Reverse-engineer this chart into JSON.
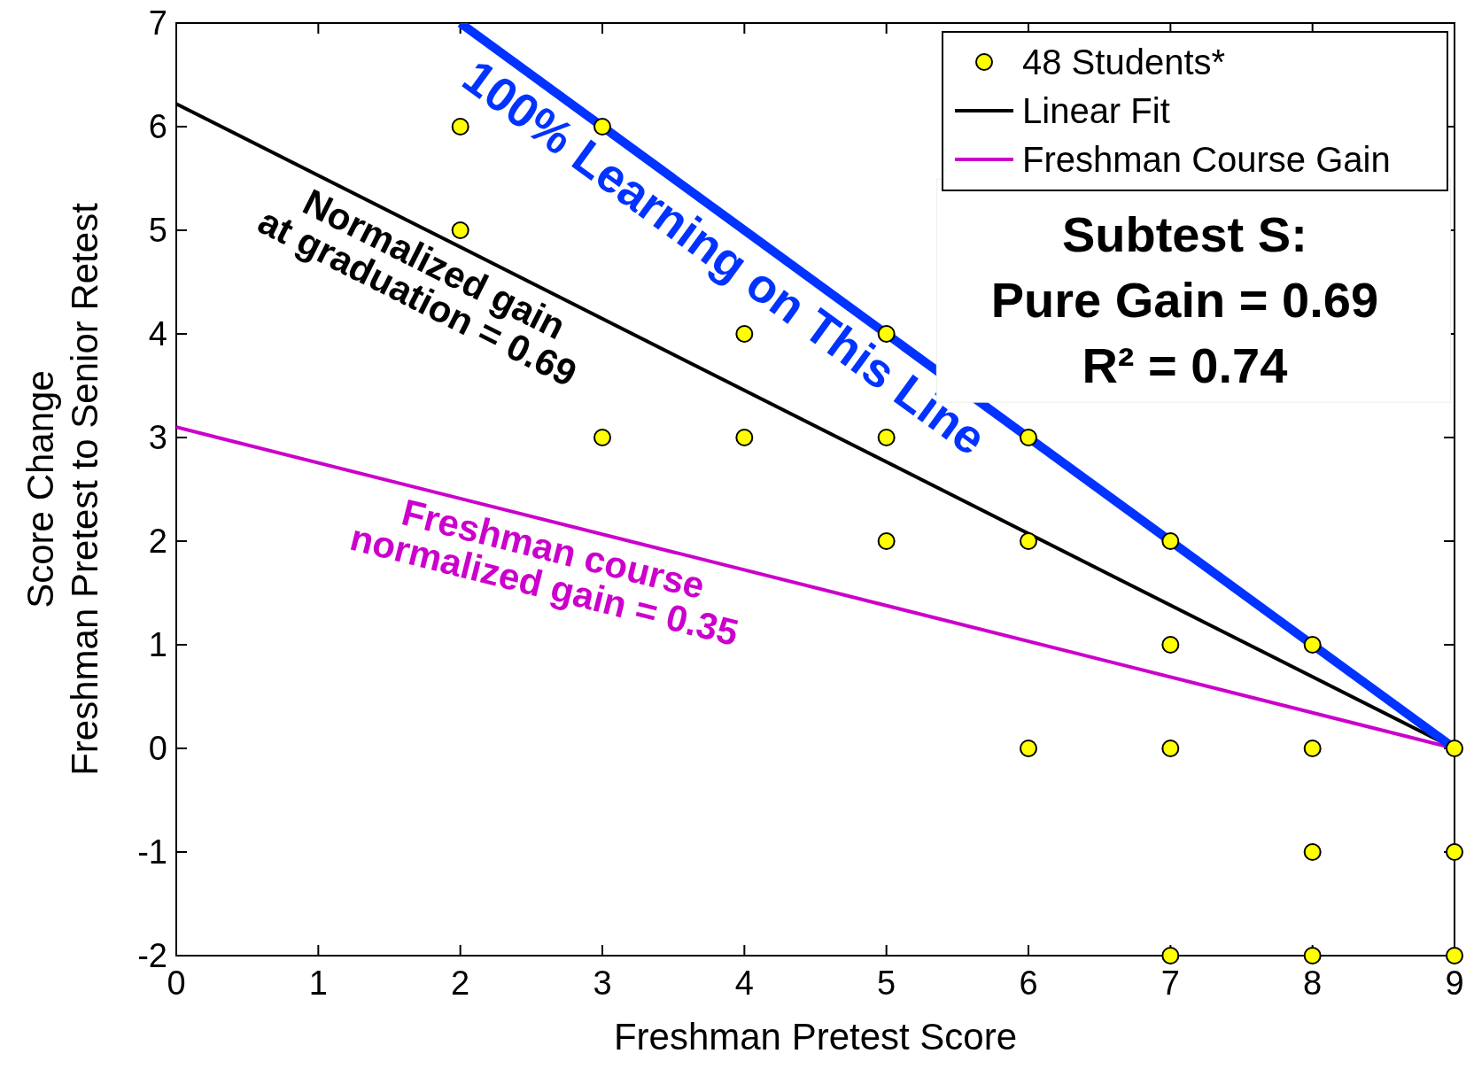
{
  "chart_data": {
    "type": "scatter",
    "xlabel": "Freshman Pretest Score",
    "ylabel": "Score Change\nFreshman Pretest to Senior Retest",
    "xlim": [
      0,
      9
    ],
    "ylim": [
      -2,
      7
    ],
    "xticks": [
      0,
      1,
      2,
      3,
      4,
      5,
      6,
      7,
      8,
      9
    ],
    "yticks": [
      -2,
      -1,
      0,
      1,
      2,
      3,
      4,
      5,
      6,
      7
    ],
    "legend": "top right",
    "grid": false,
    "series": [
      {
        "name": "48 Students*",
        "marker": "circle",
        "color": "#ffff00",
        "x": [
          2,
          2,
          3,
          3,
          4,
          4,
          5,
          5,
          5,
          6,
          6,
          6,
          7,
          7,
          7,
          7,
          8,
          8,
          8,
          8,
          9,
          9,
          9
        ],
        "values": [
          6,
          5,
          6,
          3,
          4,
          3,
          4,
          3,
          2,
          3,
          2,
          0,
          2,
          1,
          0,
          -2,
          1,
          0,
          -1,
          -2,
          0,
          -1,
          -2
        ]
      },
      {
        "name": "Linear Fit",
        "type": "line",
        "color": "#000000",
        "x": [
          0,
          9
        ],
        "values": [
          6.22,
          0
        ]
      },
      {
        "name": "Freshman Course Gain",
        "type": "line",
        "color": "#cc00cc",
        "x": [
          0,
          9
        ],
        "values": [
          3.1,
          0
        ]
      },
      {
        "type": "line",
        "color": "#0033ff",
        "x": [
          2,
          9
        ],
        "values": [
          7,
          0
        ]
      }
    ],
    "annotations": [
      {
        "text": "100% Learning on This Line",
        "x": 4,
        "y": 5
      },
      {
        "text": "Normalized gain\nat graduation = 0.69",
        "x": 1.9,
        "y": 4.9
      },
      {
        "text": "Freshman course\nnormalized gain = 0.35",
        "x": 2.7,
        "y": 2.17
      },
      "Subtest S:\nPure Gain = 0.69\nR² = 0.74"
    ]
  }
}
